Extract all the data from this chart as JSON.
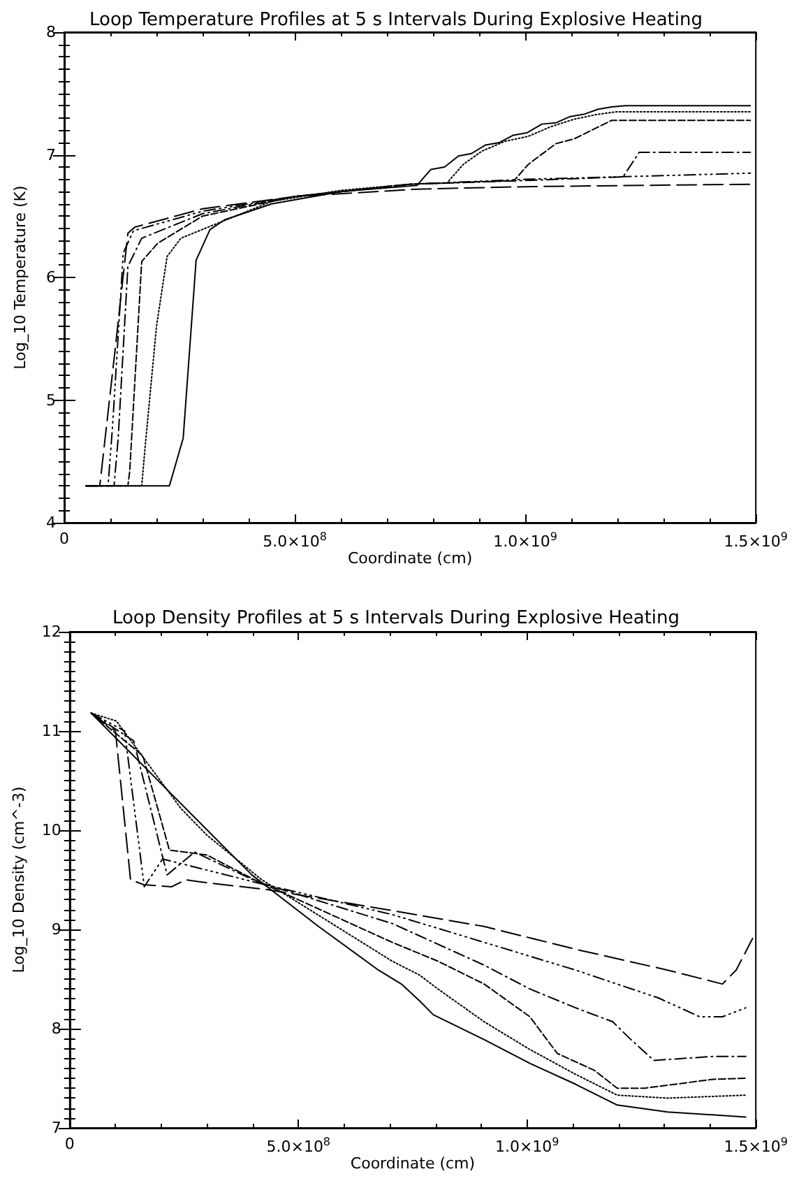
{
  "chart_data": [
    {
      "type": "line",
      "title": "Loop Temperature Profiles at 5 s Intervals During Explosive Heating",
      "xlabel": "Coordinate (cm)",
      "ylabel": "Log_10 Temperature (K)",
      "xlim": [
        0,
        1500000000
      ],
      "xticks": [
        {
          "value": 0,
          "label": "0"
        },
        {
          "value": 500000000,
          "label": "5.0×10$^{8}$"
        },
        {
          "value": 1000000000,
          "label": "1.0×10$^{9}$"
        },
        {
          "value": 1500000000,
          "label": "1.5×10$^{9}$"
        }
      ],
      "ylim": [
        4,
        8
      ],
      "yticks": [
        4,
        5,
        6,
        7,
        8
      ],
      "grid": false,
      "marker": "none",
      "series": [
        {
          "color": "#000000",
          "line_style": "solid",
          "x": [
            47000000,
            228000000,
            258000000,
            286000000,
            316000000,
            348000000,
            450000000,
            600000000,
            765000000,
            795000000,
            825000000,
            855000000,
            883000000,
            914000000,
            944000000,
            974000000,
            1004000000,
            1036000000,
            1066000000,
            1096000000,
            1127000000,
            1157000000,
            1187000000,
            1217000000,
            1488000000
          ],
          "values": [
            4.3,
            4.3,
            4.69,
            6.14,
            6.39,
            6.47,
            6.6,
            6.7,
            6.75,
            6.88,
            6.9,
            6.99,
            7.01,
            7.08,
            7.1,
            7.16,
            7.18,
            7.25,
            7.26,
            7.31,
            7.33,
            7.37,
            7.39,
            7.4,
            7.4
          ]
        },
        {
          "color": "#000000",
          "line_style": "dotted",
          "x": [
            47000000,
            168000000,
            175000000,
            200000000,
            223000000,
            253000000,
            450000000,
            600000000,
            750000000,
            830000000,
            865000000,
            906000000,
            956000000,
            1006000000,
            1056000000,
            1106000000,
            1157000000,
            1197000000,
            1488000000
          ],
          "values": [
            4.3,
            4.3,
            4.6,
            5.6,
            6.17,
            6.32,
            6.62,
            6.71,
            6.76,
            6.77,
            6.92,
            7.03,
            7.11,
            7.15,
            7.23,
            7.29,
            7.33,
            7.35,
            7.35
          ]
        },
        {
          "color": "#000000",
          "line_style": "dashed",
          "x": [
            47000000,
            138000000,
            142000000,
            168000000,
            203000000,
            300000000,
            500000000,
            750000000,
            976000000,
            1006000000,
            1066000000,
            1106000000,
            1187000000,
            1488000000
          ],
          "values": [
            4.3,
            4.3,
            4.42,
            6.13,
            6.28,
            6.5,
            6.66,
            6.76,
            6.79,
            6.92,
            7.09,
            7.13,
            7.28,
            7.28
          ]
        },
        {
          "color": "#000000",
          "line_style": "dashdot",
          "x": [
            47000000,
            108000000,
            117000000,
            138000000,
            168000000,
            300000000,
            500000000,
            750000000,
            1000000000,
            1212000000,
            1247000000,
            1488000000
          ],
          "values": [
            4.3,
            4.3,
            4.69,
            6.09,
            6.32,
            6.52,
            6.66,
            6.76,
            6.79,
            6.82,
            7.02,
            7.02
          ]
        },
        {
          "color": "#000000",
          "line_style": "dashdotdotdot",
          "x": [
            47000000,
            95000000,
            105000000,
            128000000,
            150000000,
            300000000,
            500000000,
            750000000,
            1000000000,
            1200000000,
            1488000000
          ],
          "values": [
            4.3,
            4.3,
            4.8,
            6.2,
            6.38,
            6.54,
            6.66,
            6.76,
            6.8,
            6.82,
            6.85
          ]
        },
        {
          "color": "#000000",
          "line_style": "longdash",
          "x": [
            47000000,
            77000000,
            110000000,
            138000000,
            153000000,
            300000000,
            500000000,
            765000000,
            1000000000,
            1488000000
          ],
          "values": [
            4.3,
            4.3,
            5.4,
            6.36,
            6.41,
            6.56,
            6.66,
            6.72,
            6.74,
            6.76
          ]
        }
      ]
    },
    {
      "type": "line",
      "title": "Loop Density Profiles at 5 s Intervals During Explosive Heating",
      "xlabel": "Coordinate (cm)",
      "ylabel": "Log_10 Density (cm^-3)",
      "xlim": [
        0,
        1500000000
      ],
      "xticks": [
        {
          "value": 0,
          "label": "0"
        },
        {
          "value": 500000000,
          "label": "5.0×10$^{8}$"
        },
        {
          "value": 1000000000,
          "label": "1.0×10$^{9}$"
        },
        {
          "value": 1500000000,
          "label": "1.5×10$^{9}$"
        }
      ],
      "ylim": [
        7,
        12
      ],
      "yticks": [
        7,
        8,
        9,
        10,
        11,
        12
      ],
      "grid": false,
      "marker": "none",
      "series": [
        {
          "color": "#000000",
          "line_style": "solid",
          "x": [
            47000000,
            288000000,
            398000000,
            544000000,
            675000000,
            725000000,
            765000000,
            795000000,
            906000000,
            1006000000,
            1106000000,
            1197000000,
            1307000000,
            1478000000
          ],
          "values": [
            11.18,
            10.06,
            9.55,
            9.03,
            8.59,
            8.45,
            8.28,
            8.14,
            7.89,
            7.65,
            7.44,
            7.23,
            7.16,
            7.11
          ]
        },
        {
          "color": "#000000",
          "line_style": "dotted",
          "x": [
            47000000,
            102000000,
            243000000,
            300000000,
            420000000,
            705000000,
            765000000,
            805000000,
            906000000,
            1006000000,
            1106000000,
            1197000000,
            1307000000,
            1478000000
          ],
          "values": [
            11.18,
            11.1,
            10.22,
            9.95,
            9.5,
            8.68,
            8.54,
            8.4,
            8.07,
            7.79,
            7.54,
            7.33,
            7.3,
            7.33
          ]
        },
        {
          "color": "#000000",
          "line_style": "dashed",
          "x": [
            47000000,
            160000000,
            218000000,
            300000000,
            404000000,
            705000000,
            805000000,
            906000000,
            1006000000,
            1066000000,
            1147000000,
            1197000000,
            1257000000,
            1407000000,
            1478000000
          ],
          "values": [
            11.18,
            10.75,
            9.8,
            9.75,
            9.5,
            8.87,
            8.68,
            8.45,
            8.12,
            7.75,
            7.58,
            7.4,
            7.4,
            7.49,
            7.5
          ]
        },
        {
          "color": "#000000",
          "line_style": "dashdot",
          "x": [
            47000000,
            140000000,
            213000000,
            273000000,
            410000000,
            705000000,
            906000000,
            1006000000,
            1106000000,
            1187000000,
            1227000000,
            1277000000,
            1407000000,
            1478000000
          ],
          "values": [
            11.18,
            10.9,
            9.55,
            9.78,
            9.48,
            9.06,
            8.64,
            8.4,
            8.21,
            8.07,
            7.89,
            7.68,
            7.72,
            7.72
          ]
        },
        {
          "color": "#000000",
          "line_style": "dashdotdotdot",
          "x": [
            47000000,
            120000000,
            163000000,
            203000000,
            410000000,
            705000000,
            906000000,
            1106000000,
            1287000000,
            1377000000,
            1427000000,
            1478000000
          ],
          "values": [
            11.18,
            11.0,
            9.43,
            9.71,
            9.47,
            9.15,
            8.87,
            8.59,
            8.31,
            8.12,
            8.12,
            8.21
          ]
        },
        {
          "color": "#000000",
          "line_style": "longdash",
          "x": [
            47000000,
            100000000,
            133000000,
            163000000,
            223000000,
            253000000,
            283000000,
            434000000,
            705000000,
            906000000,
            1106000000,
            1307000000,
            1427000000,
            1457000000,
            1493000000
          ],
          "values": [
            11.18,
            11.0,
            9.5,
            9.45,
            9.43,
            9.5,
            9.48,
            9.4,
            9.19,
            9.03,
            8.8,
            8.59,
            8.45,
            8.59,
            8.91
          ]
        }
      ]
    }
  ]
}
